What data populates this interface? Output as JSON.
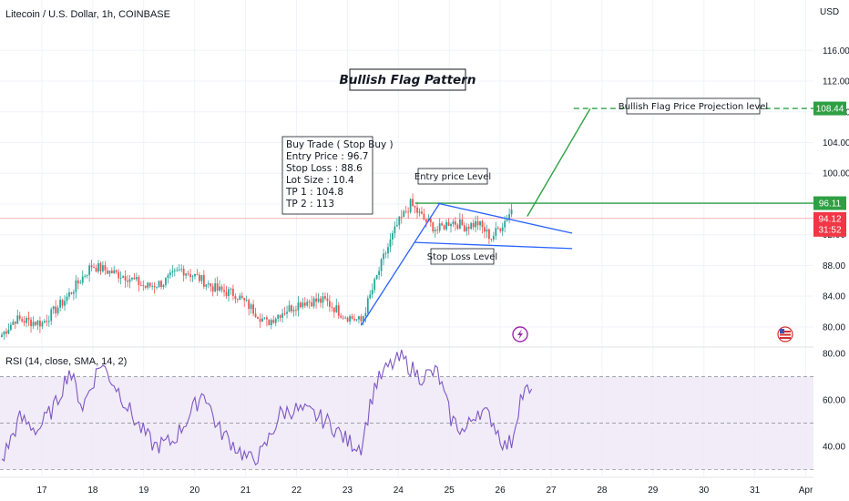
{
  "header": {
    "symbol_title": "Litecoin / U.S. Dollar, 1h, COINBASE",
    "currency": "USD"
  },
  "price_badges": {
    "projection": "108.44",
    "entry_level": "96.11",
    "last_price": "94.12",
    "countdown": "31:52"
  },
  "annotations": {
    "flag_title": "Bullish Flag Pattern",
    "entry_label": "Entry price Level",
    "stop_label": "Stop Loss Level",
    "projection_label": "Bullish Flag Price Projection level",
    "trade_box": [
      "Buy Trade ( Stop Buy )",
      "Entry Price : 96.7",
      "Stop Loss : 88.6",
      "Lot Size : 10.4",
      "TP 1 : 104.8",
      "TP 2 : 113"
    ]
  },
  "rsi_panel": {
    "label": "RSI (14, close, SMA, 14, 2)"
  },
  "colors": {
    "up": "#26a69a",
    "down": "#ef5350",
    "green_line": "#2ea043",
    "blue_line": "#2962ff",
    "rsi_line": "#7e57c2",
    "rsi_band": "#ede7f6",
    "last_price": "#f23645"
  },
  "chart_data": [
    {
      "type": "candlestick",
      "title": "Litecoin / U.S. Dollar, 1h, COINBASE",
      "ylabel": "USD",
      "ylim": [
        77.5,
        119
      ],
      "y_ticks": [
        80,
        84,
        88,
        92,
        96,
        100,
        104,
        108,
        112,
        116
      ],
      "y_tick_labels": [
        "80.00",
        "84.00",
        "88.00",
        "92.00",
        "96.00",
        "100.00",
        "104.00",
        "108.00",
        "112.00",
        "116.00"
      ],
      "x_ticks": [
        "17",
        "18",
        "19",
        "20",
        "21",
        "22",
        "23",
        "24",
        "25",
        "26",
        "27",
        "28",
        "29",
        "30",
        "31",
        "Apr"
      ],
      "grid": true,
      "last_price": 94.12,
      "waypoints": [
        [
          0,
          79
        ],
        [
          6,
          81
        ],
        [
          18,
          80.5
        ],
        [
          28,
          83.5
        ],
        [
          40,
          88
        ],
        [
          48,
          87.2
        ],
        [
          56,
          86.5
        ],
        [
          64,
          85.2
        ],
        [
          72,
          85.8
        ],
        [
          80,
          87.5
        ],
        [
          88,
          86.3
        ],
        [
          96,
          84.8
        ],
        [
          104,
          84.3
        ],
        [
          112,
          82.2
        ],
        [
          118,
          80.5
        ],
        [
          124,
          81.8
        ],
        [
          134,
          83.3
        ],
        [
          144,
          83.4
        ],
        [
          152,
          81.6
        ],
        [
          160,
          80.7
        ],
        [
          164,
          84
        ],
        [
          170,
          89
        ],
        [
          176,
          93.2
        ],
        [
          182,
          96
        ],
        [
          188,
          94
        ],
        [
          194,
          92.6
        ],
        [
          200,
          93.8
        ],
        [
          206,
          93.1
        ],
        [
          212,
          93.5
        ],
        [
          218,
          91.6
        ],
        [
          224,
          93.8
        ],
        [
          227,
          95.3
        ]
      ],
      "levels": {
        "projection": 108.44,
        "entry": 96.11,
        "stop_loss_line": [
          [
            184,
            91
          ],
          [
            254,
            90.2
          ]
        ],
        "flag_upper": [
          [
            194,
            96.1
          ],
          [
            254,
            92.2
          ]
        ],
        "flagpole": [
          [
            160,
            80.2
          ],
          [
            195,
            96.1
          ]
        ],
        "projection_path": [
          [
            234,
            94.4
          ],
          [
            262,
            108.4
          ],
          [
            372,
            108.4
          ]
        ]
      }
    },
    {
      "type": "line",
      "title": "RSI (14, close, SMA, 14, 2)",
      "ylim": [
        27,
        82
      ],
      "y_ticks": [
        40,
        60,
        80
      ],
      "y_tick_labels": [
        "40.00",
        "60.00",
        "80.00"
      ],
      "bands": [
        30,
        50,
        70
      ],
      "waypoints": [
        [
          0,
          34
        ],
        [
          8,
          52
        ],
        [
          16,
          47
        ],
        [
          24,
          58
        ],
        [
          30,
          73
        ],
        [
          36,
          57
        ],
        [
          44,
          76
        ],
        [
          52,
          64
        ],
        [
          60,
          50
        ],
        [
          68,
          40
        ],
        [
          76,
          42
        ],
        [
          84,
          54
        ],
        [
          90,
          64
        ],
        [
          96,
          48
        ],
        [
          104,
          40
        ],
        [
          110,
          34
        ],
        [
          116,
          37
        ],
        [
          124,
          54
        ],
        [
          130,
          56
        ],
        [
          138,
          54
        ],
        [
          146,
          50
        ],
        [
          154,
          42
        ],
        [
          160,
          40
        ],
        [
          166,
          66
        ],
        [
          172,
          74
        ],
        [
          178,
          78
        ],
        [
          186,
          70
        ],
        [
          194,
          72
        ],
        [
          200,
          52
        ],
        [
          206,
          46
        ],
        [
          212,
          56
        ],
        [
          218,
          52
        ],
        [
          224,
          40
        ],
        [
          227,
          42
        ],
        [
          231,
          61
        ],
        [
          234,
          64
        ],
        [
          236,
          61
        ]
      ]
    }
  ]
}
